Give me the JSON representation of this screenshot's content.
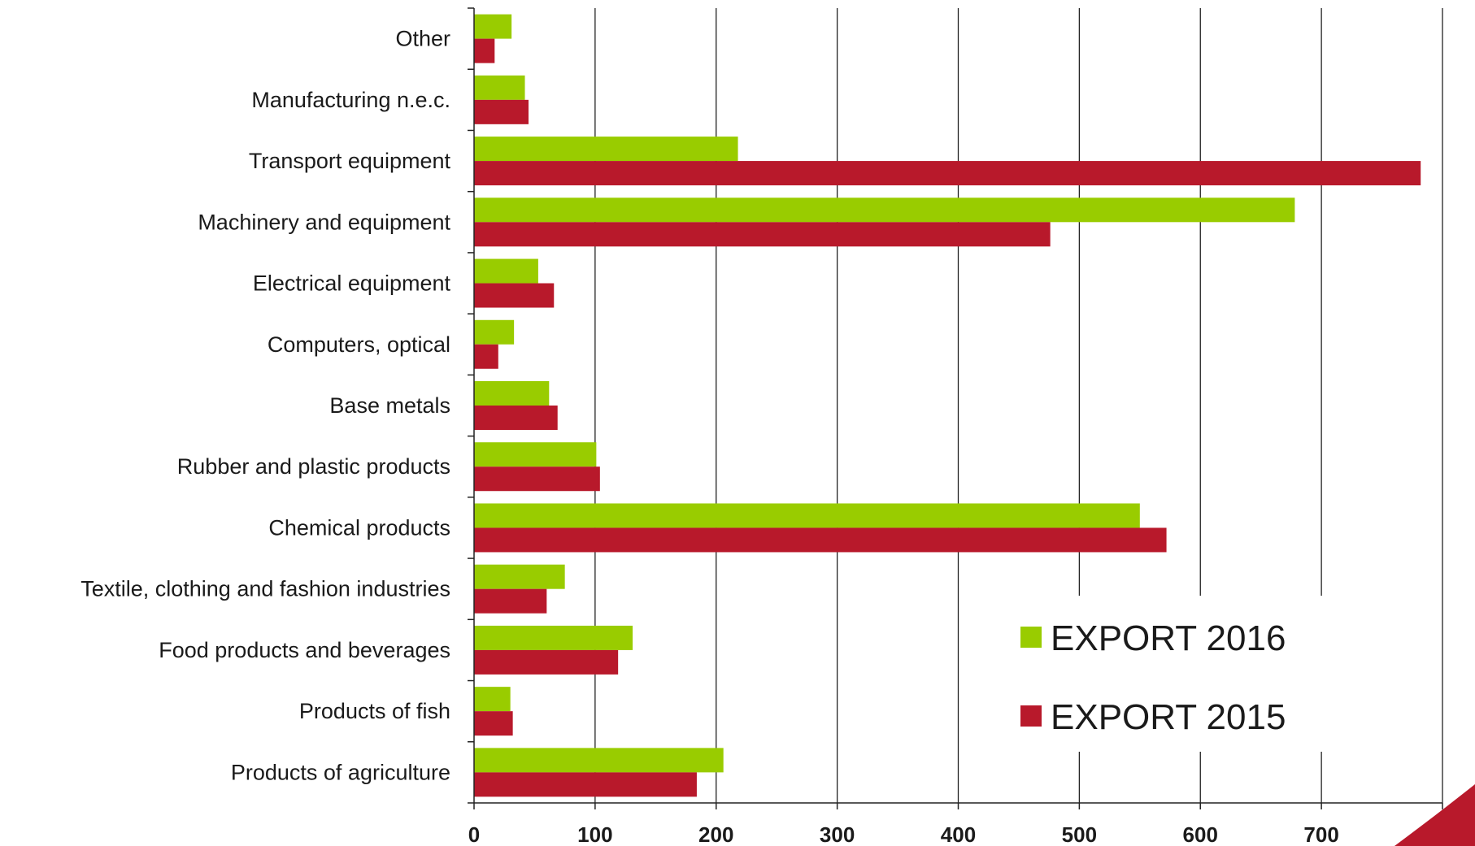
{
  "chart_data": {
    "type": "bar",
    "orientation": "horizontal",
    "categories": [
      "Other",
      "Manufacturing n.e.c.",
      "Transport equipment",
      "Machinery and equipment",
      "Electrical equipment",
      "Computers, optical",
      "Base metals",
      "Rubber and plastic products",
      "Chemical products",
      "Textile, clothing and fashion industries",
      "Food products and beverages",
      "Products of fish",
      "Products of agriculture"
    ],
    "series": [
      {
        "name": "EXPORT 2016",
        "color": "#99cc00",
        "values": [
          31,
          42,
          218,
          678,
          53,
          33,
          62,
          101,
          550,
          75,
          131,
          30,
          206
        ]
      },
      {
        "name": "EXPORT 2015",
        "color": "#b8192b",
        "values": [
          17,
          45,
          782,
          476,
          66,
          20,
          69,
          104,
          572,
          60,
          119,
          32,
          184
        ]
      }
    ],
    "xlim": [
      0,
      800
    ],
    "xticks": [
      0,
      100,
      200,
      300,
      400,
      500,
      600,
      700,
      800
    ],
    "grid": "vertical",
    "legend_position": "bottom-right",
    "title": "",
    "xlabel": "",
    "ylabel": ""
  }
}
